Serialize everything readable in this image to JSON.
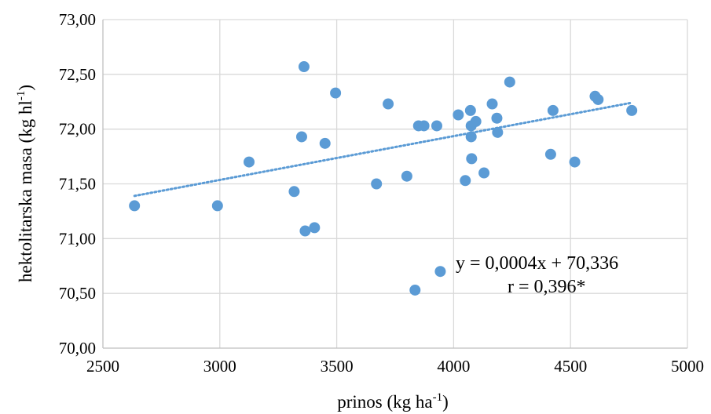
{
  "chart_data": {
    "type": "scatter",
    "xlabel": "prinos (kg ha-1)",
    "xlabel_main": "prinos (kg ha",
    "xlabel_sup": "-1",
    "xlabel_end": ")",
    "ylabel": "hektolitarska masa (kg hl-1)",
    "ylabel_main": "hektolitarska masa (kg hl",
    "ylabel_sup": "-1",
    "ylabel_end": ")",
    "xlim": [
      2500,
      5000
    ],
    "ylim": [
      70.0,
      73.0
    ],
    "xticks": [
      2500,
      3000,
      3500,
      4000,
      4500,
      5000
    ],
    "xtick_labels": [
      "2500",
      "3000",
      "3500",
      "4000",
      "4500",
      "5000"
    ],
    "yticks": [
      70.0,
      70.5,
      71.0,
      71.5,
      72.0,
      72.5,
      73.0
    ],
    "ytick_labels": [
      "70,00",
      "70,50",
      "71,00",
      "71,50",
      "72,00",
      "72,50",
      "73,00"
    ],
    "grid": true,
    "points": [
      {
        "x": 2635,
        "y": 71.3
      },
      {
        "x": 2990,
        "y": 71.3
      },
      {
        "x": 3125,
        "y": 71.7
      },
      {
        "x": 3318,
        "y": 71.43
      },
      {
        "x": 3350,
        "y": 71.93
      },
      {
        "x": 3360,
        "y": 72.57
      },
      {
        "x": 3365,
        "y": 71.07
      },
      {
        "x": 3405,
        "y": 71.1
      },
      {
        "x": 3450,
        "y": 71.87
      },
      {
        "x": 3495,
        "y": 72.33
      },
      {
        "x": 3670,
        "y": 71.5
      },
      {
        "x": 3720,
        "y": 72.23
      },
      {
        "x": 3800,
        "y": 71.57
      },
      {
        "x": 3835,
        "y": 70.53
      },
      {
        "x": 3850,
        "y": 72.03
      },
      {
        "x": 3873,
        "y": 72.03
      },
      {
        "x": 3928,
        "y": 72.03
      },
      {
        "x": 3943,
        "y": 70.7
      },
      {
        "x": 4020,
        "y": 72.13
      },
      {
        "x": 4050,
        "y": 71.53
      },
      {
        "x": 4072,
        "y": 72.17
      },
      {
        "x": 4075,
        "y": 72.03
      },
      {
        "x": 4075,
        "y": 71.93
      },
      {
        "x": 4077,
        "y": 71.73
      },
      {
        "x": 4095,
        "y": 72.07
      },
      {
        "x": 4130,
        "y": 71.6
      },
      {
        "x": 4165,
        "y": 72.23
      },
      {
        "x": 4185,
        "y": 72.1
      },
      {
        "x": 4188,
        "y": 71.97
      },
      {
        "x": 4240,
        "y": 72.43
      },
      {
        "x": 4415,
        "y": 71.77
      },
      {
        "x": 4425,
        "y": 72.17
      },
      {
        "x": 4518,
        "y": 71.7
      },
      {
        "x": 4605,
        "y": 72.3
      },
      {
        "x": 4618,
        "y": 72.27
      },
      {
        "x": 4762,
        "y": 72.17
      }
    ],
    "trendline": {
      "type": "linear",
      "slope": 0.0004,
      "intercept": 70.336,
      "x_range": [
        2635,
        4762
      ]
    },
    "annotations": {
      "equation": "y = 0,0004x + 70,336",
      "r": "r = 0,396*"
    },
    "colors": {
      "marker": "#5b9bd5",
      "trend": "#5b9bd5",
      "grid": "#d9d9d9"
    }
  }
}
